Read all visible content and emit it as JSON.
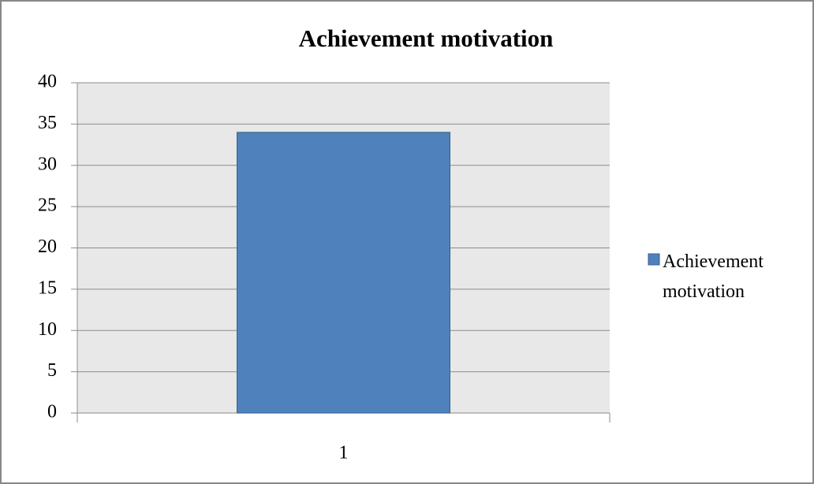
{
  "chart_data": {
    "type": "bar",
    "title": "Achievement motivation",
    "categories": [
      "1"
    ],
    "series": [
      {
        "name": "Achievement motivation",
        "color": "#4f81bd",
        "values": [
          34
        ]
      }
    ],
    "ylim": [
      0,
      40
    ],
    "yticks": [
      0,
      5,
      10,
      15,
      20,
      25,
      30,
      35,
      40
    ],
    "grid": true,
    "legend": "right"
  }
}
